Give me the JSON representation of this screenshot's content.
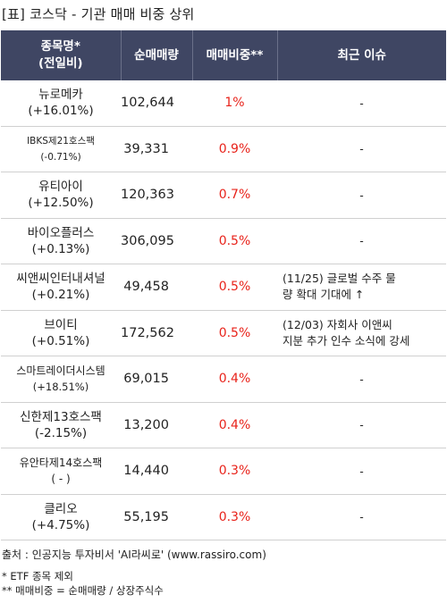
{
  "title": "[표] 코스닥 - 기관 매매 비중 상위",
  "headers": {
    "name_line1": "종목명*",
    "name_line2": "(전일비)",
    "volume": "순매매량",
    "ratio": "매매비중**",
    "issue": "최근 이슈"
  },
  "rows": [
    {
      "name": "뉴로메카",
      "change": "(+16.01%)",
      "volume": "102,644",
      "ratio": "1%",
      "issue": "-"
    },
    {
      "name": "IBKS제21호스팩",
      "change": "(-0.71%)",
      "volume": "39,331",
      "ratio": "0.9%",
      "issue": "-"
    },
    {
      "name": "유티아이",
      "change": "(+12.50%)",
      "volume": "120,363",
      "ratio": "0.7%",
      "issue": "-"
    },
    {
      "name": "바이오플러스",
      "change": "(+0.13%)",
      "volume": "306,095",
      "ratio": "0.5%",
      "issue": "-"
    },
    {
      "name": "씨앤씨인터내셔널",
      "change": "(+0.21%)",
      "volume": "49,458",
      "ratio": "0.5%",
      "issue_line1": "(11/25) 글로벌 수주 물",
      "issue_line2": "량 확대 기대에 ↑"
    },
    {
      "name": "브이티",
      "change": "(+0.51%)",
      "volume": "172,562",
      "ratio": "0.5%",
      "issue_line1": "(12/03) 자회사 이앤씨",
      "issue_line2": "지분 추가 인수 소식에 강세"
    },
    {
      "name": "스마트레이더시스템",
      "change": "(+18.51%)",
      "volume": "69,015",
      "ratio": "0.4%",
      "issue": "-"
    },
    {
      "name": "신한제13호스팩",
      "change": "(-2.15%)",
      "volume": "13,200",
      "ratio": "0.4%",
      "issue": "-"
    },
    {
      "name": "유안타제14호스팩",
      "change": "( - )",
      "volume": "14,440",
      "ratio": "0.3%",
      "issue": "-"
    },
    {
      "name": "클리오",
      "change": "(+4.75%)",
      "volume": "55,195",
      "ratio": "0.3%",
      "issue": "-"
    }
  ],
  "source": "출처 : 인공지능 투자비서 'AI라씨로' (www.rassiro.com)",
  "note1": "* ETF 종목 제외",
  "note2": "** 매매비중 = 순매매량 / 상장주식수",
  "colors": {
    "header_bg": "#3f4663",
    "ratio_text": "#e8231b"
  }
}
